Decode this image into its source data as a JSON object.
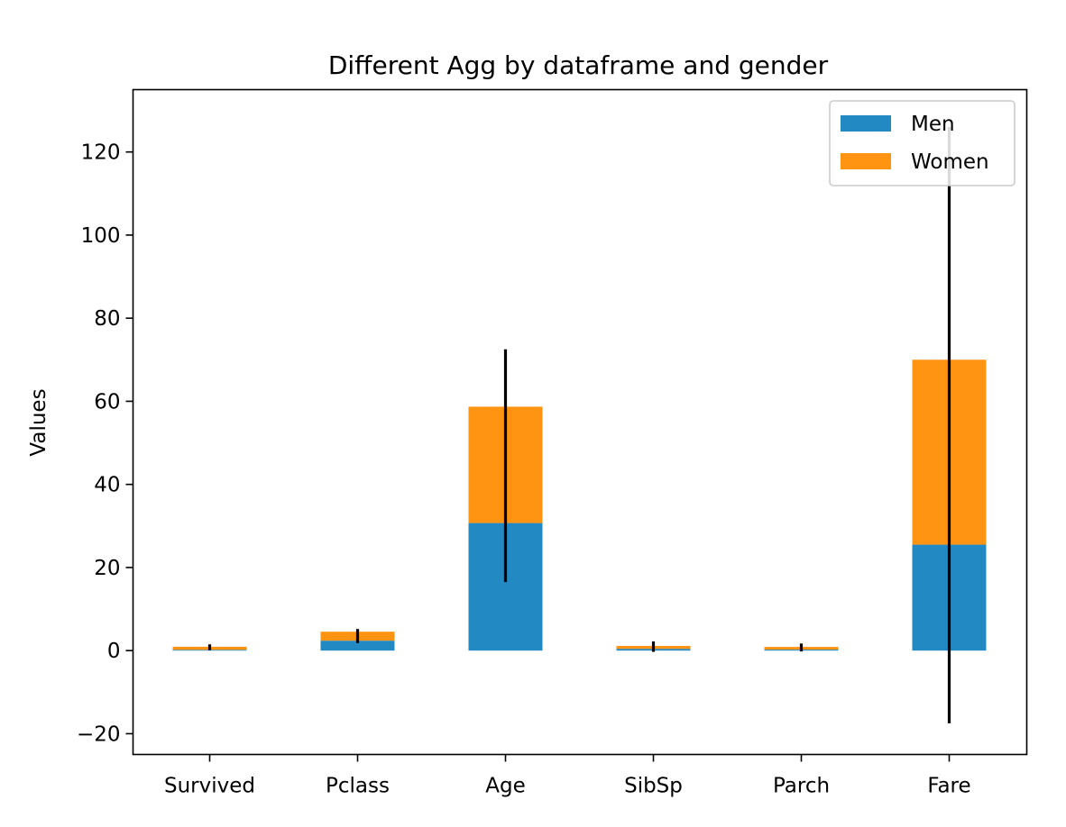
{
  "chart_data": {
    "type": "bar",
    "stacked": true,
    "title": "Different Agg by dataframe and gender",
    "xlabel": "",
    "ylabel": "Values",
    "categories": [
      "Survived",
      "Pclass",
      "Age",
      "SibSp",
      "Parch",
      "Fare"
    ],
    "series": [
      {
        "name": "Men",
        "color": "#2389c2",
        "values": [
          0.19,
          2.39,
          30.7,
          0.43,
          0.24,
          25.5
        ]
      },
      {
        "name": "Women",
        "color": "#ff9312",
        "values": [
          0.74,
          2.16,
          28.0,
          0.69,
          0.65,
          44.5
        ]
      }
    ],
    "error_bars": [
      {
        "center": 0.93,
        "low": 0.1,
        "high": 1.5
      },
      {
        "center": 4.55,
        "low": 1.8,
        "high": 5.2
      },
      {
        "center": 58.7,
        "low": 16.5,
        "high": 72.5
      },
      {
        "center": 1.12,
        "low": -0.3,
        "high": 2.2
      },
      {
        "center": 0.89,
        "low": -0.2,
        "high": 1.7
      },
      {
        "center": 70.0,
        "low": -17.5,
        "high": 126.0
      }
    ],
    "ylim": [
      -25,
      135
    ],
    "yticks": [
      -20,
      0,
      20,
      40,
      60,
      80,
      100,
      120
    ],
    "ytick_labels": [
      "−20",
      "0",
      "20",
      "40",
      "60",
      "80",
      "100",
      "120"
    ],
    "grid": false,
    "legend_position": "top-right"
  }
}
